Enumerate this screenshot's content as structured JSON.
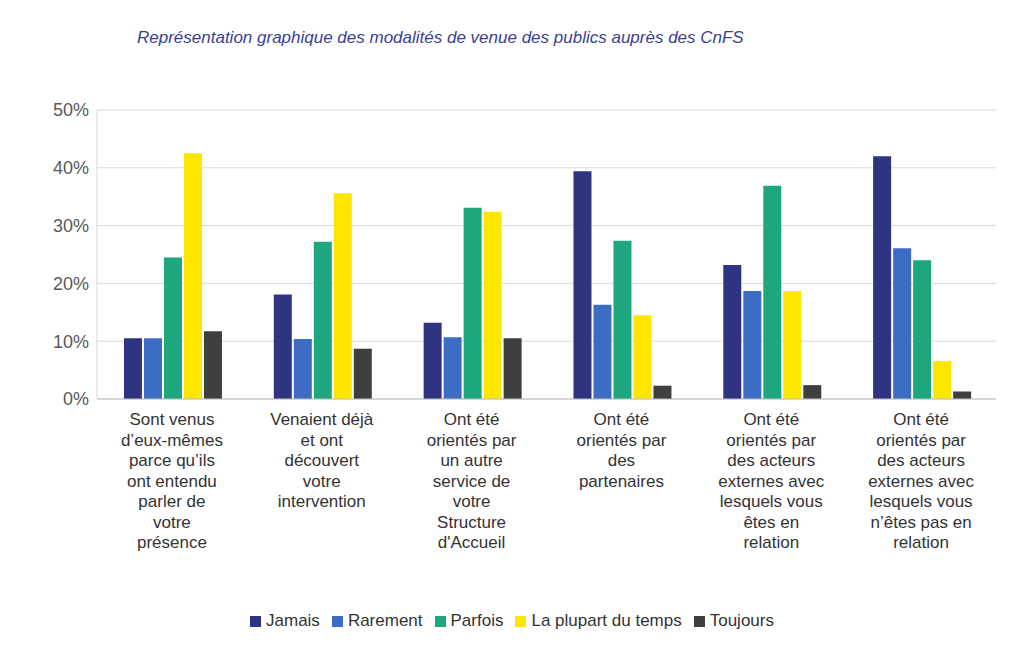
{
  "chart_data": {
    "type": "bar",
    "title": "Représentation graphique des modalités de venue des publics auprès des CnFS",
    "categories": [
      "Sont venus d’eux-mêmes parce qu’ils ont entendu parler de votre présence",
      "Venaient déjà et ont découvert votre intervention",
      "Ont été orientés par un autre service de votre Structure d'Accueil",
      "Ont été orientés par des partenaires",
      "Ont été orientés par des acteurs externes avec lesquels vous êtes en relation",
      "Ont été orientés par des acteurs externes avec lesquels vous n’êtes pas en relation"
    ],
    "series": [
      {
        "name": "Jamais",
        "color": "#2e3480",
        "values": [
          10.5,
          18.1,
          13.2,
          39.4,
          23.2,
          42.0
        ]
      },
      {
        "name": "Rarement",
        "color": "#3d6cc5",
        "values": [
          10.5,
          10.4,
          10.7,
          16.3,
          18.7,
          26.1
        ]
      },
      {
        "name": "Parfois",
        "color": "#1ea67e",
        "values": [
          24.5,
          27.2,
          33.1,
          27.4,
          36.9,
          24.0
        ]
      },
      {
        "name": "La plupart du temps",
        "color": "#ffe600",
        "values": [
          42.5,
          35.6,
          32.4,
          14.5,
          18.7,
          6.6
        ]
      },
      {
        "name": "Toujours",
        "color": "#3f3f3f",
        "values": [
          11.7,
          8.7,
          10.5,
          2.3,
          2.4,
          1.3
        ]
      }
    ],
    "ylim": [
      0,
      50
    ],
    "yticks": [
      {
        "value": 0,
        "label": "0%"
      },
      {
        "value": 10,
        "label": "10%"
      },
      {
        "value": 20,
        "label": "20%"
      },
      {
        "value": 30,
        "label": "30%"
      },
      {
        "value": 40,
        "label": "40%"
      },
      {
        "value": 50,
        "label": "50%"
      }
    ],
    "grid": true,
    "legend": "bottom"
  }
}
